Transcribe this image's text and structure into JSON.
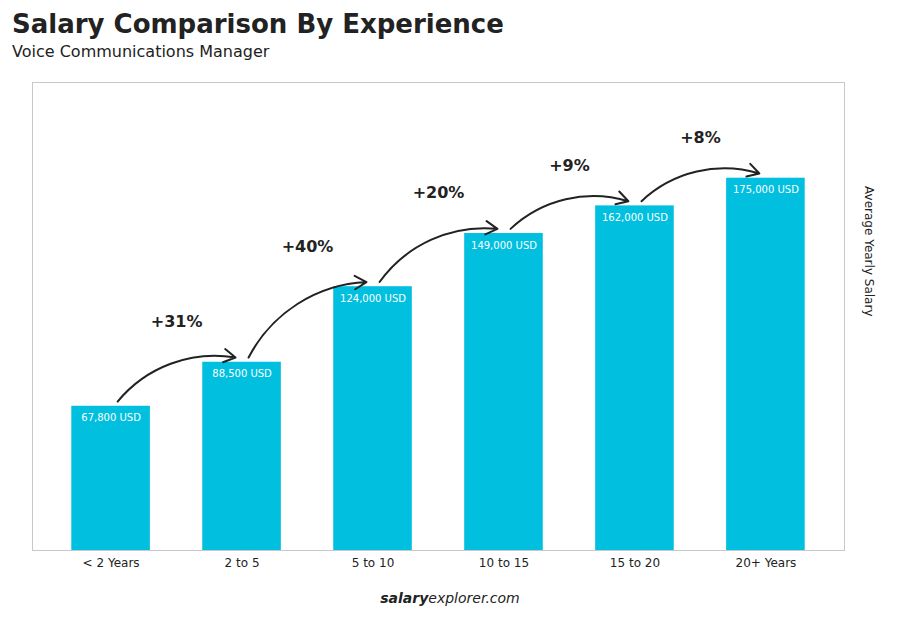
{
  "chart_data": {
    "type": "bar",
    "title": "Salary Comparison By Experience",
    "subtitle": "Voice Communications Manager",
    "ylabel": "Average Yearly Salary",
    "categories": [
      "< 2 Years",
      "2 to 5",
      "5 to 10",
      "10 to 15",
      "15 to 20",
      "20+ Years"
    ],
    "values": [
      67800,
      88500,
      124000,
      149000,
      162000,
      175000
    ],
    "value_labels": [
      "67,800 USD",
      "88,500 USD",
      "124,000 USD",
      "149,000 USD",
      "162,000 USD",
      "175,000 USD"
    ],
    "data_labels": true,
    "color": "#00bfdf",
    "ylim": [
      0,
      220000
    ],
    "tick_labels": "x",
    "grid": false,
    "annotations": [
      {
        "text": "+31%",
        "from": "< 2 Years",
        "to": "2 to 5"
      },
      {
        "text": "+40%",
        "from": "2 to 5",
        "to": "5 to 10"
      },
      {
        "text": "+20%",
        "from": "5 to 10",
        "to": "10 to 15"
      },
      {
        "text": "+9%",
        "from": "10 to 15",
        "to": "15 to 20"
      },
      {
        "text": "+8%",
        "from": "15 to 20",
        "to": "20+ Years"
      }
    ],
    "footer": [
      "salary",
      "explorer.com"
    ]
  }
}
